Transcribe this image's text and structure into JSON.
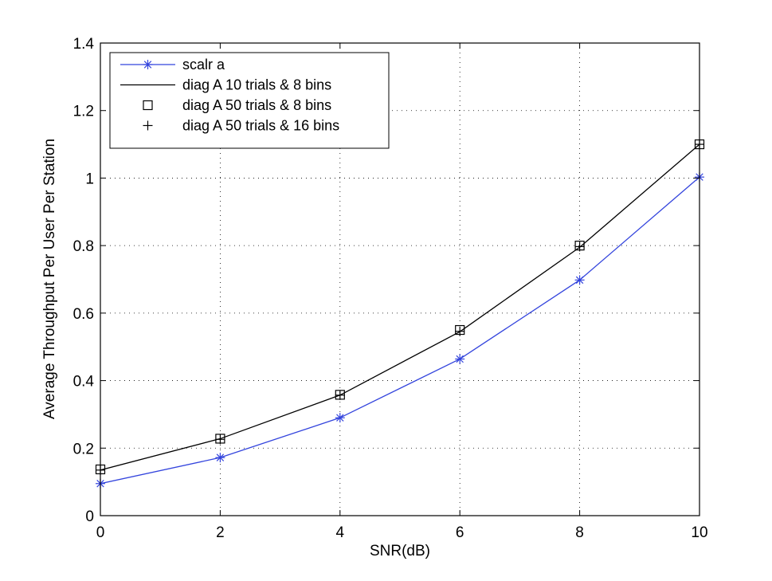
{
  "chart_data": {
    "type": "line",
    "title": "",
    "xlabel": "SNR(dB)",
    "ylabel": "Average Throughput Per User Per Station",
    "xlim": [
      0,
      10
    ],
    "ylim": [
      0,
      1.4
    ],
    "x_ticks": [
      0,
      2,
      4,
      6,
      8,
      10
    ],
    "x_tick_labels": [
      "0",
      "2",
      "4",
      "6",
      "8",
      "10"
    ],
    "y_ticks": [
      0,
      0.2,
      0.4,
      0.6,
      0.8,
      1,
      1.2,
      1.4
    ],
    "y_tick_labels": [
      "0",
      "0.2",
      "0.4",
      "0.6",
      "0.8",
      "1",
      "1.2",
      "1.4"
    ],
    "grid": true,
    "legend_position": "top-left",
    "x": [
      0,
      2,
      4,
      6,
      8,
      10
    ],
    "series": [
      {
        "name": "scalr a",
        "values": [
          0.095,
          0.172,
          0.29,
          0.464,
          0.698,
          1.003
        ],
        "color": "#3344dd",
        "line": "solid",
        "marker": "asterisk"
      },
      {
        "name": "diag A 10 trials & 8 bins",
        "values": [
          0.135,
          0.228,
          0.357,
          0.545,
          0.795,
          1.1
        ],
        "color": "#000000",
        "line": "solid",
        "marker": "none"
      },
      {
        "name": "diag A 50 trials & 8 bins",
        "values": [
          0.137,
          0.228,
          0.358,
          0.55,
          0.8,
          1.1
        ],
        "color": "#000000",
        "line": "none",
        "marker": "square"
      },
      {
        "name": "diag A 50 trials & 16 bins",
        "values": [
          0.135,
          0.226,
          0.357,
          0.546,
          0.797,
          1.1
        ],
        "color": "#000000",
        "line": "none",
        "marker": "plus"
      }
    ]
  }
}
